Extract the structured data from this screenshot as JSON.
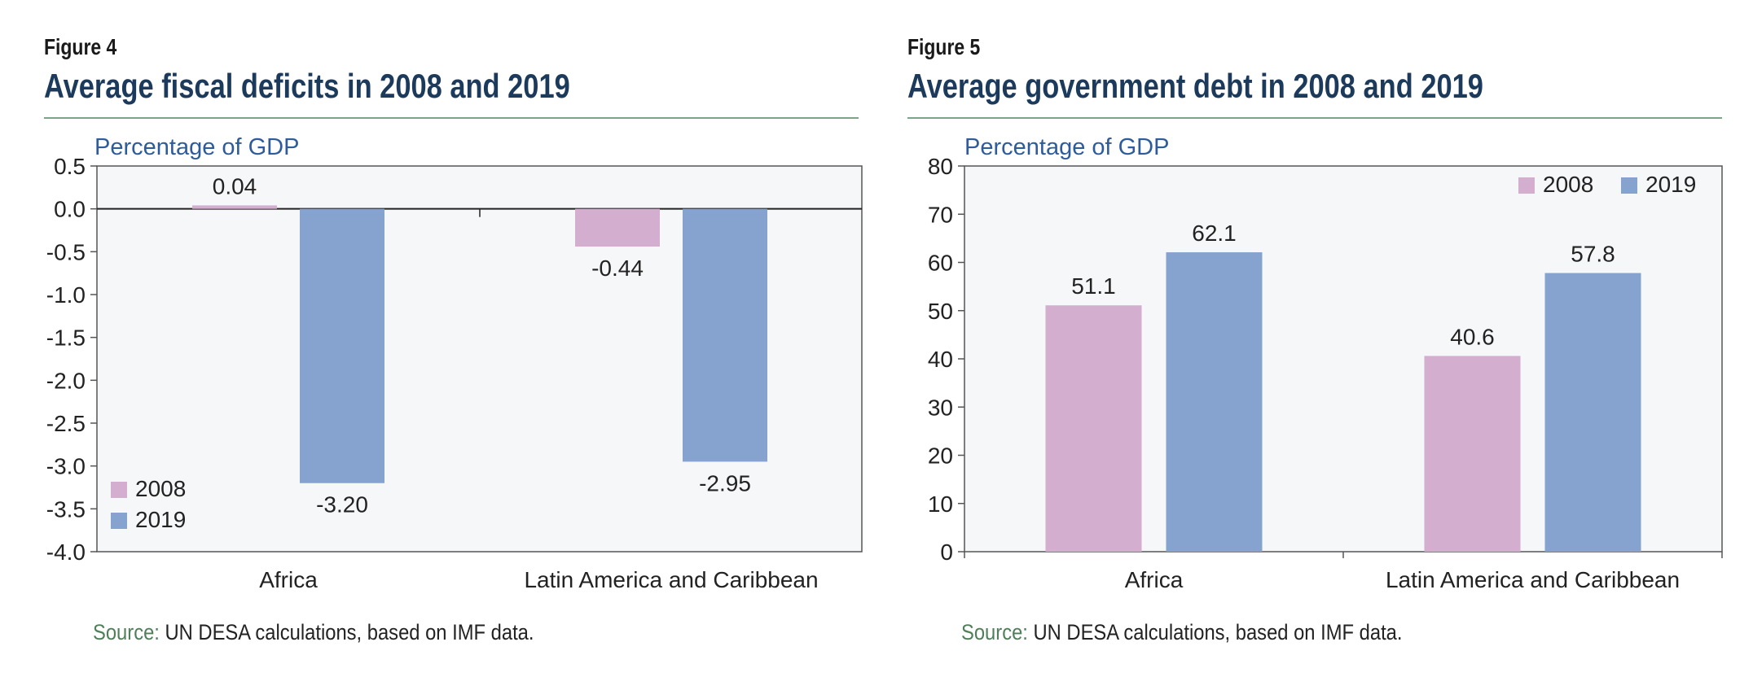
{
  "colors": {
    "series_2008": "#d3aecf",
    "series_2019": "#86a2cf",
    "title": "#1b3a5c",
    "unit_label": "#2e5c9a",
    "rule": "#7aa58a",
    "source_key": "#4f7f59",
    "plot_bg": "#f6f7f9"
  },
  "figures": [
    {
      "label": "Figure 4",
      "title": "Average fiscal deficits in 2008 and 2019",
      "source": {
        "key": "Source:",
        "text": " UN DESA calculations, based on IMF data."
      }
    },
    {
      "label": "Figure 5",
      "title": "Average government debt in 2008 and 2019",
      "source": {
        "key": "Source:",
        "text": " UN DESA calculations, based on IMF data."
      }
    }
  ],
  "chart_data": [
    {
      "type": "bar",
      "unit_label": "Percentage of GDP",
      "categories": [
        "Africa",
        "Latin America and Caribbean"
      ],
      "series": [
        {
          "name": "2008",
          "values": [
            0.04,
            -0.44
          ],
          "labels": [
            "0.04",
            "-0.44"
          ]
        },
        {
          "name": "2019",
          "values": [
            -3.2,
            -2.95
          ],
          "labels": [
            "-3.20",
            "-2.95"
          ]
        }
      ],
      "ylim": [
        -4.0,
        0.5
      ],
      "yticks": [
        "0.5",
        "0.0",
        "-0.5",
        "-1.0",
        "-1.5",
        "-2.0",
        "-2.5",
        "-3.0",
        "-3.5",
        "-4.0"
      ],
      "legend": "bottom-left",
      "grid": false
    },
    {
      "type": "bar",
      "unit_label": "Percentage of GDP",
      "categories": [
        "Africa",
        "Latin America and Caribbean"
      ],
      "series": [
        {
          "name": "2008",
          "values": [
            51.1,
            40.6
          ],
          "labels": [
            "51.1",
            "40.6"
          ]
        },
        {
          "name": "2019",
          "values": [
            62.1,
            57.8
          ],
          "labels": [
            "62.1",
            "57.8"
          ]
        }
      ],
      "ylim": [
        0,
        80
      ],
      "yticks": [
        "80",
        "70",
        "60",
        "50",
        "40",
        "30",
        "20",
        "10",
        "0"
      ],
      "legend": "top-right",
      "grid": false
    }
  ]
}
